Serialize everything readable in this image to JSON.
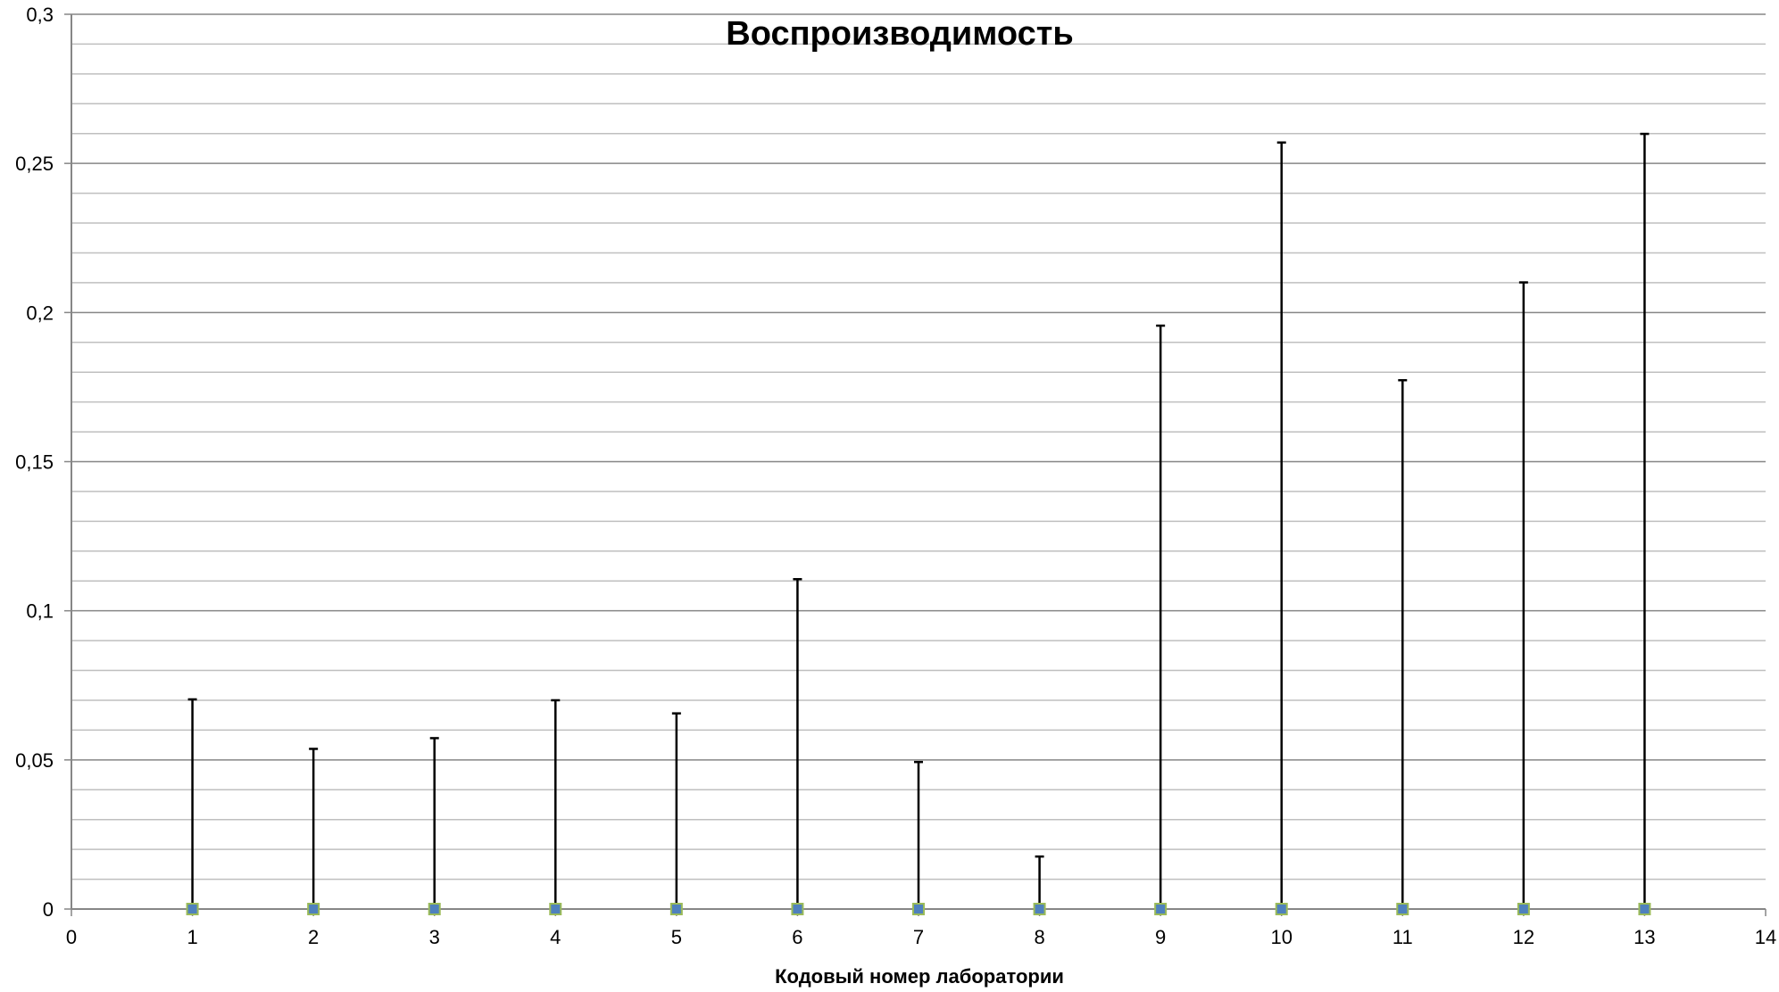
{
  "chart_data": {
    "type": "scatter",
    "title": "Воспроизводимость",
    "xlabel": "Кодовый номер лаборатории",
    "ylabel": "",
    "xlim": [
      0,
      14
    ],
    "ylim": [
      0,
      0.3
    ],
    "x_ticks": [
      "0",
      "1",
      "2",
      "3",
      "4",
      "5",
      "6",
      "7",
      "8",
      "9",
      "10",
      "11",
      "12",
      "13",
      "14"
    ],
    "y_ticks": [
      "0",
      "0,05",
      "0,1",
      "0,15",
      "0,2",
      "0,25",
      "0,3"
    ],
    "y_tick_values": [
      0,
      0.05,
      0.1,
      0.15,
      0.2,
      0.25,
      0.3
    ],
    "major_grid_step": 0.05,
    "minor_grid_step": 0.01,
    "grid": true,
    "legend": "none",
    "series": [
      {
        "x": [
          1,
          2,
          3,
          4,
          5,
          6,
          7,
          8,
          9,
          10,
          11,
          12,
          13
        ],
        "values": [
          0,
          0,
          0,
          0,
          0,
          0,
          0,
          0,
          0,
          0,
          0,
          0,
          0
        ],
        "error_plus": [
          0.0703,
          0.0537,
          0.0573,
          0.07,
          0.0656,
          0.1106,
          0.0493,
          0.0176,
          0.1956,
          0.257,
          0.1773,
          0.2101,
          0.2599
        ]
      }
    ],
    "colors": {
      "marker_fill": "#4f81bd",
      "marker_edge": "#9bbb59",
      "error_bar": "#000000",
      "major_grid": "#868686",
      "minor_grid": "#bfbfbf",
      "axis": "#868686"
    }
  }
}
